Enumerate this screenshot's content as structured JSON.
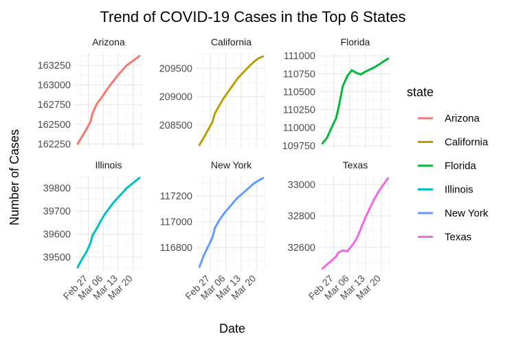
{
  "chart_data": {
    "type": "line",
    "title": "Trend of COVID-19 Cases in the Top 6 States",
    "xlabel": "Date",
    "ylabel": "Number of Cases",
    "x_ticks": [
      "Feb 27",
      "Mar 06",
      "Mar 13",
      "Mar 20"
    ],
    "x": [
      "Feb 22",
      "Feb 24",
      "Feb 26",
      "Feb 28",
      "Mar 01",
      "Mar 03",
      "Mar 05",
      "Mar 07",
      "Mar 09",
      "Mar 11",
      "Mar 13",
      "Mar 15",
      "Mar 17",
      "Mar 19",
      "Mar 21",
      "Mar 23"
    ],
    "grid": true,
    "legend": {
      "title": "state",
      "position": "right"
    },
    "panels": [
      {
        "name": "Arizona",
        "color": "#F8766D",
        "ylim": [
          162200,
          163400
        ],
        "yticks": [
          162250,
          162500,
          162750,
          163000,
          163250
        ],
        "values": [
          162250,
          162340,
          162430,
          162530,
          162640,
          162760,
          162830,
          162910,
          162990,
          163060,
          163130,
          163190,
          163250,
          163290,
          163330,
          163370
        ]
      },
      {
        "name": "California",
        "color": "#B79F00",
        "ylim": [
          208100,
          209760
        ],
        "yticks": [
          208500,
          209000,
          209500
        ],
        "values": [
          208150,
          208280,
          208420,
          208560,
          208700,
          208840,
          208970,
          209080,
          209190,
          209300,
          209390,
          209470,
          209550,
          209620,
          209680,
          209710
        ]
      },
      {
        "name": "Florida",
        "color": "#00BA38",
        "ylim": [
          109720,
          111030
        ],
        "yticks": [
          109750,
          110000,
          110250,
          110500,
          110750,
          111000
        ],
        "values": [
          109780,
          109860,
          110000,
          110130,
          110260,
          110580,
          110720,
          110800,
          110760,
          110740,
          110780,
          110810,
          110840,
          110880,
          110920,
          110960
        ]
      },
      {
        "name": "Illinois",
        "color": "#00BFC4",
        "ylim": [
          39440,
          39850
        ],
        "yticks": [
          39500,
          39600,
          39700,
          39800
        ],
        "values": [
          39455,
          39490,
          39520,
          39560,
          39595,
          39625,
          39660,
          39690,
          39715,
          39740,
          39760,
          39780,
          39800,
          39815,
          39830,
          39845
        ]
      },
      {
        "name": "New York",
        "color": "#619CFF",
        "ylim": [
          116620,
          117350
        ],
        "yticks": [
          116800,
          117000,
          117200
        ],
        "values": [
          116650,
          116740,
          116810,
          116880,
          116950,
          117010,
          117060,
          117100,
          117140,
          117180,
          117210,
          117240,
          117270,
          117300,
          117320,
          117340
        ]
      },
      {
        "name": "Texas",
        "color": "#F564E3",
        "ylim": [
          32450,
          33050
        ],
        "yticks": [
          32600,
          32800,
          33000
        ],
        "values": [
          32465,
          32490,
          32515,
          32540,
          32565,
          32580,
          32575,
          32610,
          32650,
          32720,
          32790,
          32850,
          32910,
          32960,
          33000,
          33040
        ]
      }
    ]
  }
}
